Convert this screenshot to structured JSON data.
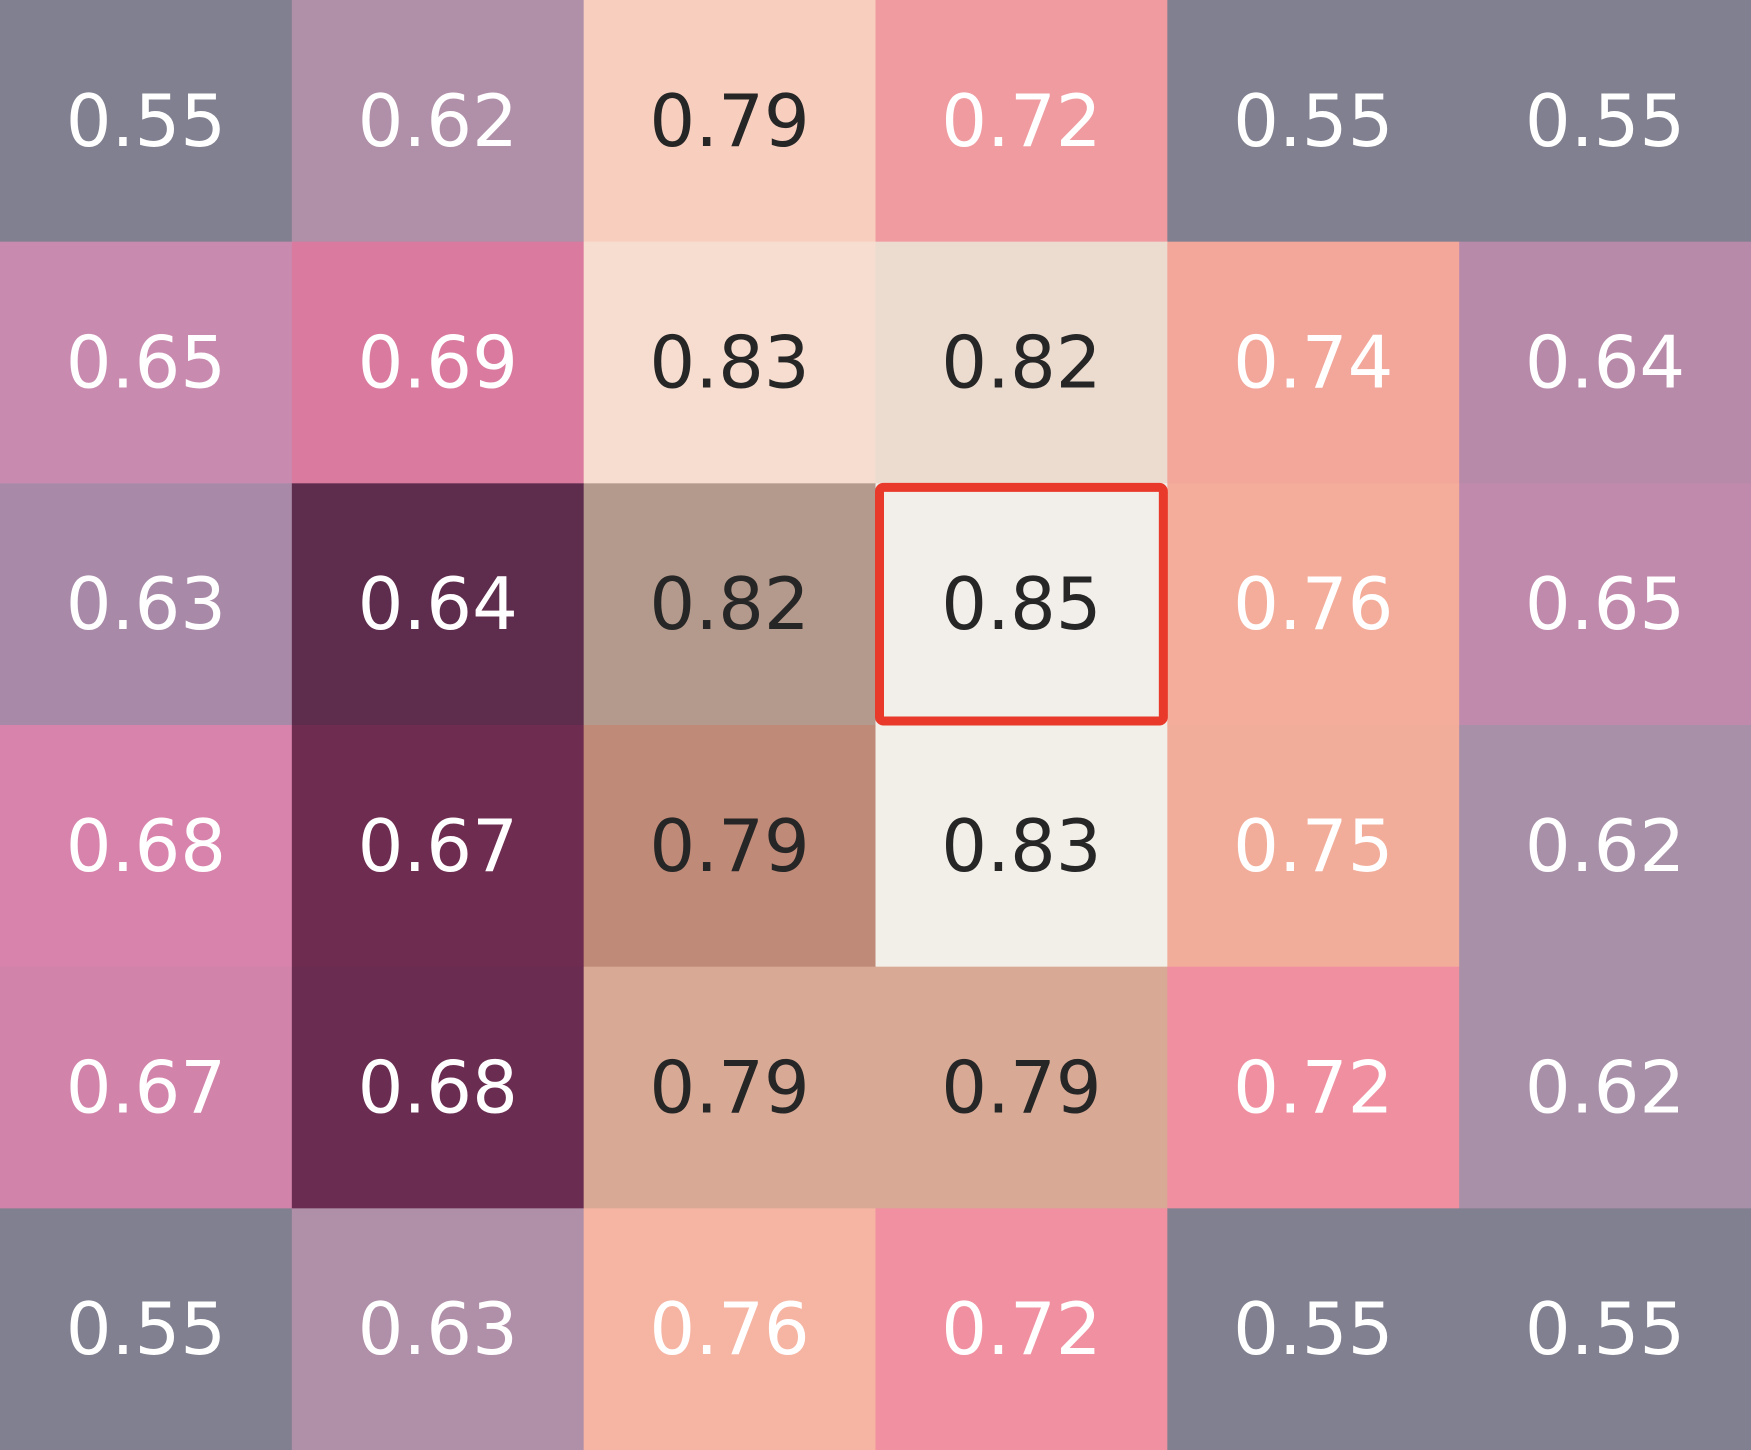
{
  "chart_data": {
    "type": "heatmap",
    "rows": 6,
    "cols": 6,
    "values": [
      [
        0.55,
        0.62,
        0.79,
        0.72,
        0.55,
        0.55
      ],
      [
        0.65,
        0.69,
        0.83,
        0.82,
        0.74,
        0.64
      ],
      [
        0.63,
        0.64,
        0.82,
        0.85,
        0.76,
        0.65
      ],
      [
        0.68,
        0.67,
        0.79,
        0.83,
        0.75,
        0.62
      ],
      [
        0.67,
        0.68,
        0.79,
        0.79,
        0.72,
        0.62
      ],
      [
        0.55,
        0.63,
        0.76,
        0.72,
        0.55,
        0.55
      ]
    ],
    "cell_colors": [
      [
        "#808090",
        "#b08fa8",
        "#f8cfbf",
        "#f09ba0",
        "#808090",
        "#808090"
      ],
      [
        "#c98aaf",
        "#d97a9e",
        "#f6ddd0",
        "#ecdcd0",
        "#f3a69a",
        "#b88aaa"
      ],
      [
        "#a88aa8",
        "#5e2c4c",
        "#b49a8c",
        "#f2eeea",
        "#f4ad9a",
        "#c08aac"
      ],
      [
        "#d883ac",
        "#6e2c50",
        "#c08a78",
        "#f2eee8",
        "#f2ad9a",
        "#a890a8"
      ],
      [
        "#d283aa",
        "#6a2c50",
        "#d8aa96",
        "#d8aa96",
        "#f08fa0",
        "#a890a8"
      ],
      [
        "#808090",
        "#b08fa8",
        "#f6b4a2",
        "#f090a0",
        "#808090",
        "#808090"
      ]
    ],
    "text_colors": [
      [
        "#ffffff",
        "#ffffff",
        "#262626",
        "#ffffff",
        "#ffffff",
        "#ffffff"
      ],
      [
        "#ffffff",
        "#ffffff",
        "#262626",
        "#262626",
        "#ffffff",
        "#ffffff"
      ],
      [
        "#ffffff",
        "#ffffff",
        "#262626",
        "#262626",
        "#ffffff",
        "#ffffff"
      ],
      [
        "#ffffff",
        "#ffffff",
        "#262626",
        "#262626",
        "#ffffff",
        "#ffffff"
      ],
      [
        "#ffffff",
        "#ffffff",
        "#262626",
        "#262626",
        "#ffffff",
        "#ffffff"
      ],
      [
        "#ffffff",
        "#ffffff",
        "#ffffff",
        "#ffffff",
        "#ffffff",
        "#ffffff"
      ]
    ],
    "highlight": {
      "row": 2,
      "col": 3,
      "color": "#e8392a"
    },
    "grid": false,
    "legend": "none"
  }
}
